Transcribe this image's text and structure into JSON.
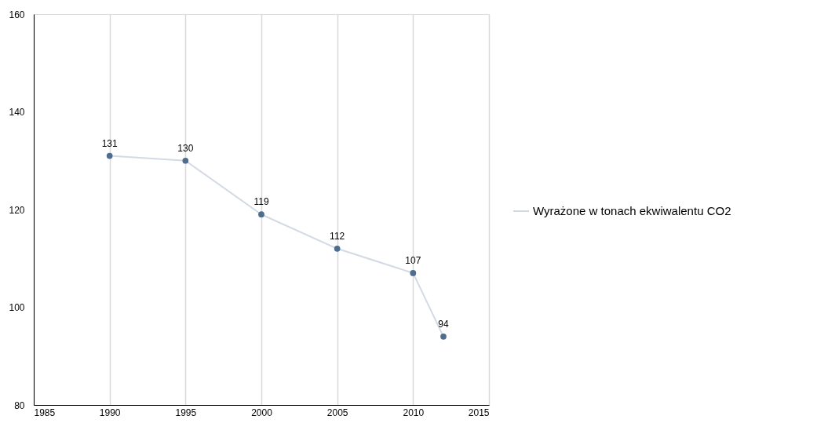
{
  "chart_data": {
    "type": "line",
    "x": [
      1990,
      1995,
      2000,
      2005,
      2010,
      2012
    ],
    "series": [
      {
        "name": "Wyrażone w tonach ekwiwalentu CO2",
        "color": "#4f6d8f",
        "values": [
          131,
          130,
          119,
          112,
          107,
          94
        ]
      }
    ],
    "xlim": [
      1985,
      2015
    ],
    "xticks": [
      1985,
      1990,
      1995,
      2000,
      2005,
      2010,
      2015
    ],
    "ylim": [
      80,
      160
    ],
    "yticks": [
      80,
      100,
      120,
      140,
      160
    ],
    "grid": "x",
    "legend": "right",
    "marker": "circle",
    "line_style": "solid",
    "data_labels": true
  }
}
